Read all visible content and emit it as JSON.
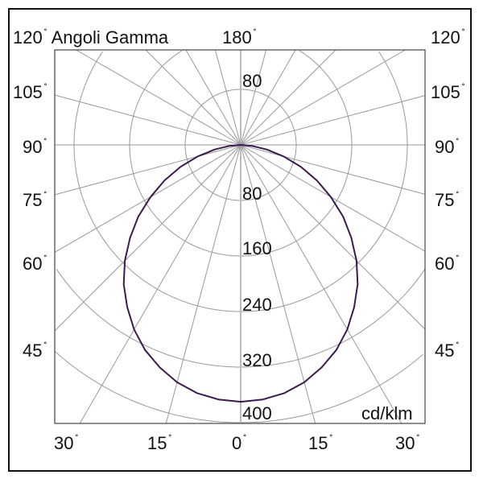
{
  "chart_data": {
    "type": "polar-line",
    "title": "Angoli Gamma",
    "unit": "cd/klm",
    "center_label": "180",
    "radial_ticks": [
      80,
      160,
      240,
      320,
      400
    ],
    "upper_radial_tick": 80,
    "radial_range": [
      0,
      480
    ],
    "spoke_step_deg": 15,
    "grid": true,
    "side_angle_labels": [
      "120",
      "105",
      "90",
      "75",
      "60",
      "45"
    ],
    "bottom_angle_labels": [
      "30",
      "15",
      "0",
      "15",
      "30"
    ],
    "degree_symbol": "˚",
    "curve_color": "#3b1a4f",
    "series": [
      {
        "gamma_deg": [
          0,
          5,
          10,
          15,
          20,
          25,
          30,
          35,
          40,
          45,
          50,
          55,
          60,
          65,
          70,
          75,
          80,
          85,
          90
        ],
        "intensity": [
          370,
          368,
          363,
          354,
          341,
          326,
          307,
          285,
          262,
          236,
          208,
          180,
          150,
          121,
          92,
          64,
          38,
          16,
          0
        ],
        "symmetric": true
      }
    ]
  }
}
